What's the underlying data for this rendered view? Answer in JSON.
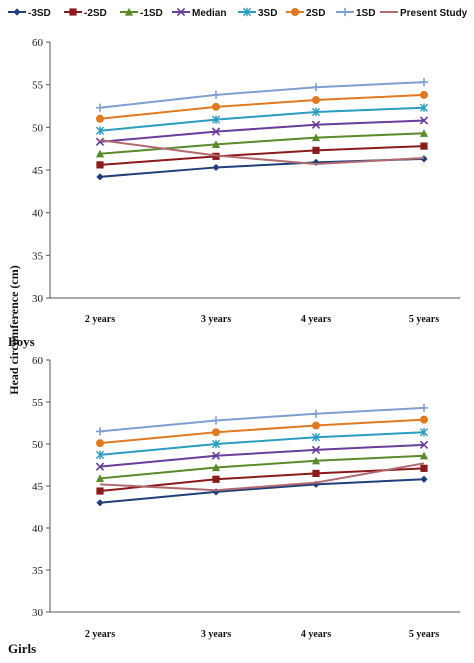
{
  "chart_data": [
    {
      "type": "line",
      "panel_label": "Boys",
      "ylabel": "Head circumference (cm)",
      "categories": [
        "2 years",
        "3 years",
        "4 years",
        "5 years"
      ],
      "ylim": [
        30,
        60
      ],
      "yticks": [
        30,
        35,
        40,
        45,
        50,
        55,
        60
      ],
      "grid": false,
      "legend": "top",
      "series": [
        {
          "name": "-3SD",
          "values": [
            44.2,
            45.3,
            45.9,
            46.3
          ],
          "color": "#1f3f7a",
          "marker": "diamond"
        },
        {
          "name": "-2SD",
          "values": [
            45.6,
            46.6,
            47.3,
            47.8
          ],
          "color": "#8b1a1a",
          "marker": "square"
        },
        {
          "name": "-1SD",
          "values": [
            46.9,
            48.0,
            48.8,
            49.3
          ],
          "color": "#5a8a2a",
          "marker": "triangle"
        },
        {
          "name": "Median",
          "values": [
            48.3,
            49.5,
            50.3,
            50.8
          ],
          "color": "#6a3d9a",
          "marker": "x"
        },
        {
          "name": "3SD",
          "values": [
            49.6,
            50.9,
            51.8,
            52.3
          ],
          "color": "#2a9dc0",
          "marker": "star"
        },
        {
          "name": "2SD",
          "values": [
            51.0,
            52.4,
            53.2,
            53.8
          ],
          "color": "#e07a20",
          "marker": "circle"
        },
        {
          "name": "1SD",
          "values": [
            52.3,
            53.8,
            54.7,
            55.3
          ],
          "color": "#7e9fd0",
          "marker": "plus"
        },
        {
          "name": "Present Study",
          "values": [
            48.5,
            46.7,
            45.7,
            46.4
          ],
          "color": "#b06a70",
          "marker": "none"
        }
      ]
    },
    {
      "type": "line",
      "panel_label": "Girls",
      "ylabel": "",
      "categories": [
        "2 years",
        "3 years",
        "4 years",
        "5 years"
      ],
      "ylim": [
        30,
        60
      ],
      "yticks": [
        30,
        35,
        40,
        45,
        50,
        55,
        60
      ],
      "grid": false,
      "legend": "none",
      "series": [
        {
          "name": "-3SD",
          "values": [
            43.0,
            44.3,
            45.2,
            45.8
          ],
          "color": "#1f3f7a",
          "marker": "diamond"
        },
        {
          "name": "-2SD",
          "values": [
            44.4,
            45.8,
            46.5,
            47.1
          ],
          "color": "#8b1a1a",
          "marker": "square"
        },
        {
          "name": "-1SD",
          "values": [
            45.9,
            47.2,
            48.0,
            48.6
          ],
          "color": "#5a8a2a",
          "marker": "triangle"
        },
        {
          "name": "Median",
          "values": [
            47.3,
            48.6,
            49.3,
            49.9
          ],
          "color": "#6a3d9a",
          "marker": "x"
        },
        {
          "name": "3SD",
          "values": [
            48.7,
            50.0,
            50.8,
            51.4
          ],
          "color": "#2a9dc0",
          "marker": "star"
        },
        {
          "name": "2SD",
          "values": [
            50.1,
            51.4,
            52.2,
            52.9
          ],
          "color": "#e07a20",
          "marker": "circle"
        },
        {
          "name": "1SD",
          "values": [
            51.5,
            52.8,
            53.6,
            54.3
          ],
          "color": "#7e9fd0",
          "marker": "plus"
        },
        {
          "name": "Present Study",
          "values": [
            45.2,
            44.5,
            45.4,
            47.7
          ],
          "color": "#b06a70",
          "marker": "none"
        }
      ]
    }
  ]
}
